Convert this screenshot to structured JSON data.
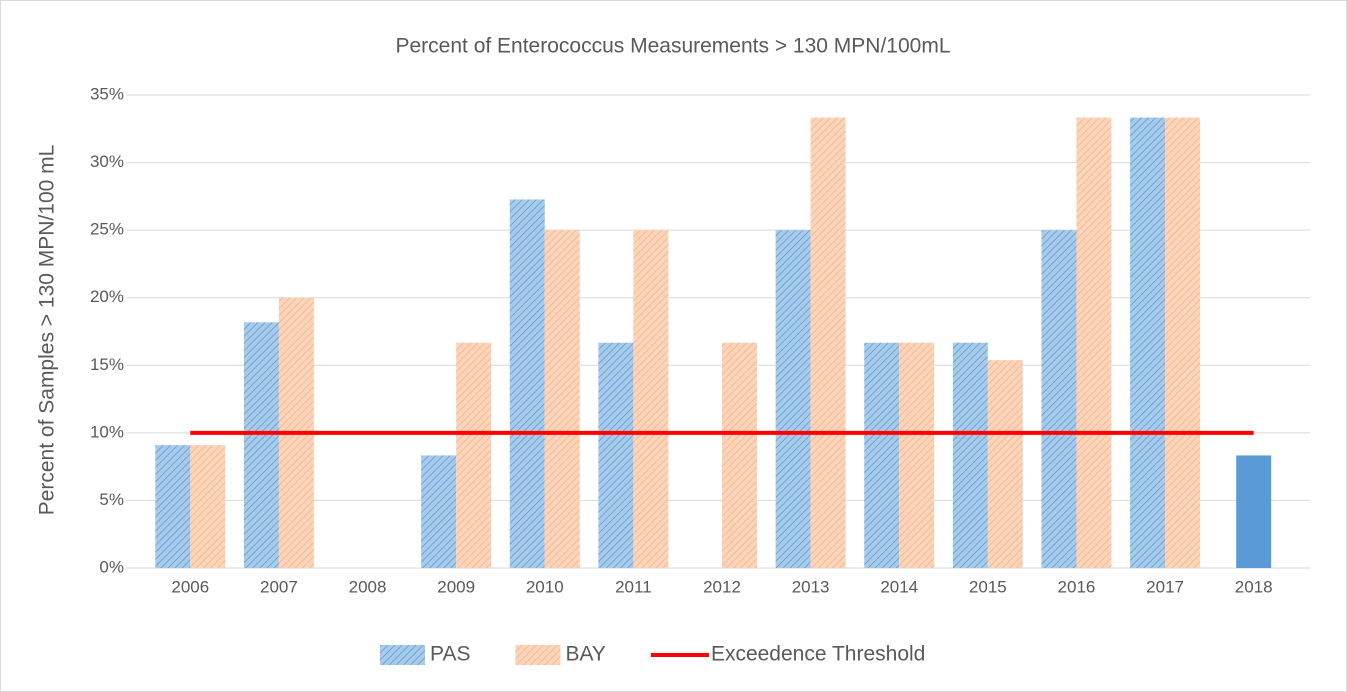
{
  "chart_data": {
    "type": "bar",
    "title": "Percent of Enterococcus Measurements > 130 MPN/100mL",
    "y_label": "Percent of Samples > 130 MPN/100 mL",
    "categories": [
      "2006",
      "2007",
      "2008",
      "2009",
      "2010",
      "2011",
      "2012",
      "2013",
      "2014",
      "2015",
      "2016",
      "2017",
      "2018"
    ],
    "series": [
      {
        "name": "PAS",
        "color": "#5b9bd5",
        "values": [
          9.09,
          18.18,
          0,
          8.33,
          27.27,
          16.67,
          0,
          25,
          16.67,
          16.67,
          25,
          33.33,
          8.33
        ]
      },
      {
        "name": "BAY",
        "color": "#f4b183",
        "values": [
          9.09,
          20,
          0,
          16.67,
          25,
          25,
          16.67,
          33.33,
          16.67,
          15.38,
          33.33,
          33.33,
          null
        ]
      },
      {
        "name": "Exceedence Threshold",
        "type": "line",
        "color": "#ff0000",
        "values": [
          10,
          10,
          10,
          10,
          10,
          10,
          10,
          10,
          10,
          10,
          10,
          10,
          10
        ]
      }
    ],
    "ylim": [
      0,
      35
    ],
    "yticks": [
      {
        "value": 0,
        "label": "0%"
      },
      {
        "value": 5,
        "label": "5%"
      },
      {
        "value": 10,
        "label": "10%"
      },
      {
        "value": 15,
        "label": "15%"
      },
      {
        "value": 20,
        "label": "20%"
      },
      {
        "value": 25,
        "label": "25%"
      },
      {
        "value": 30,
        "label": "30%"
      },
      {
        "value": 35,
        "label": "35%"
      }
    ],
    "grid": true,
    "legend": "bottom"
  }
}
